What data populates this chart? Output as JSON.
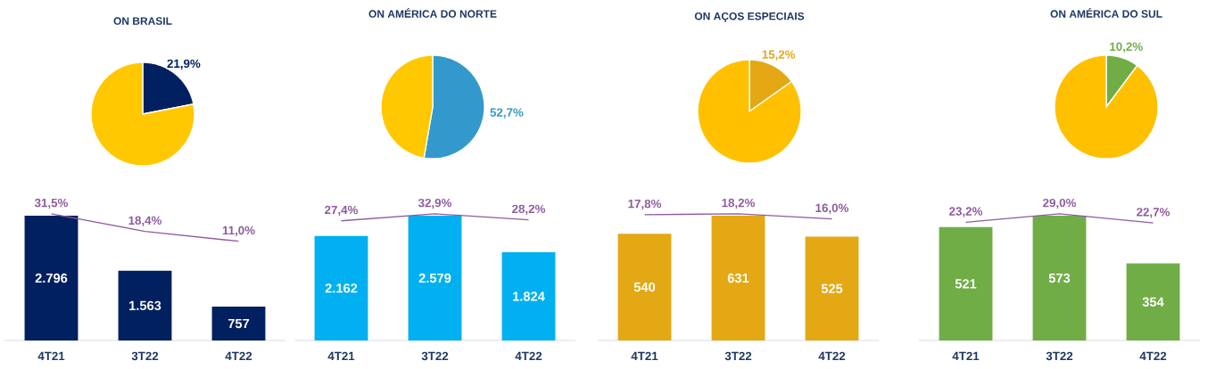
{
  "chart_data": [
    {
      "type": "pie",
      "title": "ON BRASIL",
      "categories": [
        null,
        null
      ],
      "values": [
        21.9,
        78.1
      ],
      "colors": [
        "#002060",
        "#FFC800"
      ],
      "value_labels": [
        "21,9%",
        null
      ]
    },
    {
      "type": "pie",
      "title": "ON AMÉRICA DO NORTE",
      "categories": [
        null,
        null
      ],
      "values": [
        52.7,
        47.3
      ],
      "colors": [
        "#3399CC",
        "#FFC800"
      ],
      "value_labels": [
        "52,7%",
        null
      ]
    },
    {
      "type": "pie",
      "title": "ON AÇOS ESPECIAIS",
      "categories": [
        null,
        null
      ],
      "values": [
        15.2,
        84.8
      ],
      "colors": [
        "#E3A814",
        "#FFC000"
      ],
      "value_labels": [
        "15,2%",
        null
      ]
    },
    {
      "type": "pie",
      "title": "ON AMÉRICA DO SUL",
      "categories": [
        null,
        null
      ],
      "values": [
        10.2,
        89.8
      ],
      "colors": [
        "#70AD47",
        "#FFC000"
      ],
      "value_labels": [
        "10,2%",
        null
      ]
    },
    {
      "type": "bar",
      "categories": [
        "4T21",
        "3T22",
        "4T22"
      ],
      "tick_labels": "x",
      "series": [
        {
          "type": "bar",
          "color": "#002060",
          "values": [
            2796,
            1563,
            757
          ],
          "value_labels": [
            "2.796",
            "1.563",
            "757"
          ]
        },
        {
          "type": "line",
          "axis": "y2",
          "color": "#8E5BA0",
          "values": [
            31.5,
            18.4,
            11.0
          ],
          "value_labels": [
            "31,5%",
            "18,4%",
            "11,0%"
          ]
        }
      ]
    },
    {
      "type": "bar",
      "categories": [
        "4T21",
        "3T22",
        "4T22"
      ],
      "tick_labels": "x",
      "series": [
        {
          "type": "bar",
          "color": "#00B0F0",
          "values": [
            2162,
            2579,
            1824
          ],
          "value_labels": [
            "2.162",
            "2.579",
            "1.824"
          ]
        },
        {
          "type": "line",
          "axis": "y2",
          "color": "#8E5BA0",
          "values": [
            27.4,
            32.9,
            28.2
          ],
          "value_labels": [
            "27,4%",
            "32,9%",
            "28,2%"
          ]
        }
      ]
    },
    {
      "type": "bar",
      "categories": [
        "4T21",
        "3T22",
        "4T22"
      ],
      "tick_labels": "x",
      "series": [
        {
          "type": "bar",
          "color": "#E3A814",
          "values": [
            540,
            631,
            525
          ],
          "value_labels": [
            "540",
            "631",
            "525"
          ]
        },
        {
          "type": "line",
          "axis": "y2",
          "color": "#8E5BA0",
          "values": [
            17.8,
            18.2,
            16.0
          ],
          "value_labels": [
            "17,8%",
            "18,2%",
            "16,0%"
          ]
        }
      ]
    },
    {
      "type": "bar",
      "categories": [
        "4T21",
        "3T22",
        "4T22"
      ],
      "tick_labels": "x",
      "series": [
        {
          "type": "bar",
          "color": "#70AD47",
          "values": [
            521,
            573,
            354
          ],
          "value_labels": [
            "521",
            "573",
            "354"
          ]
        },
        {
          "type": "line",
          "axis": "y2",
          "color": "#8E5BA0",
          "values": [
            23.2,
            29.0,
            22.7
          ],
          "value_labels": [
            "23,2%",
            "29,0%",
            "22,7%"
          ]
        }
      ]
    }
  ]
}
